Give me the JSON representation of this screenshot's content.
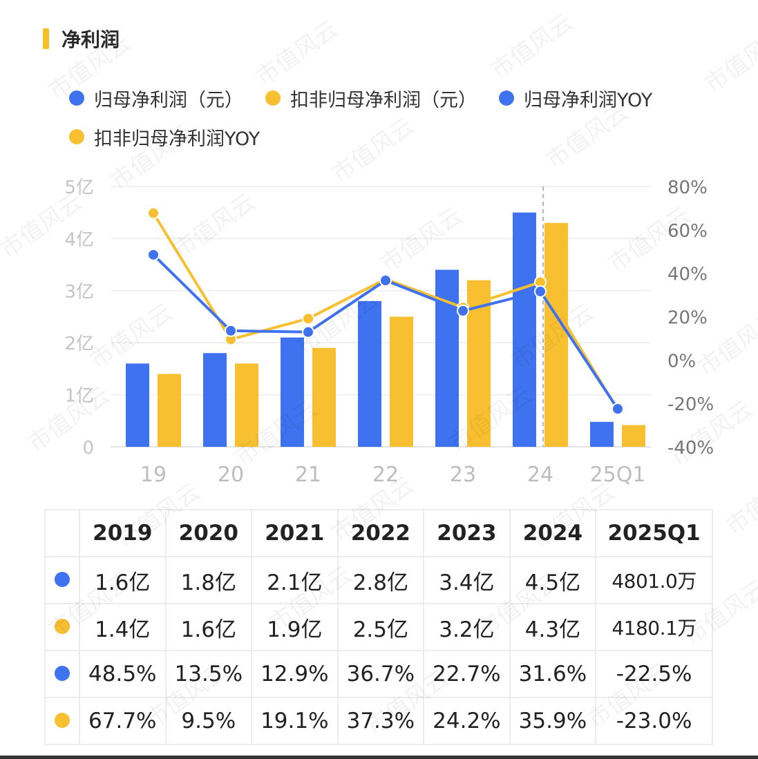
{
  "header": {
    "title": "净利润",
    "accent_color": "#f7bf2a"
  },
  "legend": {
    "items": [
      {
        "label": "归母净利润（元）",
        "color": "#3f72ef"
      },
      {
        "label": "扣非归母净利润（元）",
        "color": "#f8c031"
      },
      {
        "label": "归母净利润YOY",
        "color": "#3f72ef"
      },
      {
        "label": "扣非归母净利润YOY",
        "color": "#f8c031"
      }
    ]
  },
  "chart_data": {
    "type": "bar",
    "categories": [
      "19",
      "20",
      "21",
      "22",
      "23",
      "24",
      "25Q1"
    ],
    "series": [
      {
        "name": "归母净利润（元）",
        "kind": "bar",
        "axis": "left",
        "color": "#3f72ef",
        "values": [
          1.6,
          1.8,
          2.1,
          2.8,
          3.4,
          4.5,
          0.48
        ]
      },
      {
        "name": "扣非归母净利润（元）",
        "kind": "bar",
        "axis": "left",
        "color": "#f8c031",
        "values": [
          1.4,
          1.6,
          1.9,
          2.5,
          3.2,
          4.3,
          0.418
        ]
      },
      {
        "name": "归母净利润YOY",
        "kind": "line",
        "axis": "right",
        "color": "#3f72ef",
        "values": [
          48.5,
          13.5,
          12.9,
          36.7,
          22.7,
          31.6,
          -22.5
        ]
      },
      {
        "name": "扣非归母净利润YOY",
        "kind": "line",
        "axis": "right",
        "color": "#f8c031",
        "values": [
          67.7,
          9.5,
          19.1,
          37.3,
          24.2,
          35.9,
          -23.0
        ]
      }
    ],
    "y_left": {
      "ticks": [
        "0",
        "1亿",
        "2亿",
        "3亿",
        "4亿",
        "5亿"
      ],
      "range": [
        0,
        5
      ]
    },
    "y_right": {
      "ticks": [
        "-40%",
        "-20%",
        "0%",
        "20%",
        "40%",
        "60%",
        "80%"
      ],
      "range": [
        -40,
        80
      ]
    },
    "highlight_category": "24",
    "grid": true
  },
  "table": {
    "headers": [
      "2019",
      "2020",
      "2021",
      "2022",
      "2023",
      "2024",
      "2025Q1"
    ],
    "rows": [
      {
        "color": "#3f72ef",
        "cells": [
          "1.6亿",
          "1.8亿",
          "2.1亿",
          "2.8亿",
          "3.4亿",
          "4.5亿",
          "4801.0万"
        ]
      },
      {
        "color": "#f8c031",
        "cells": [
          "1.4亿",
          "1.6亿",
          "1.9亿",
          "2.5亿",
          "3.2亿",
          "4.3亿",
          "4180.1万"
        ]
      },
      {
        "color": "#3f72ef",
        "cells": [
          "48.5%",
          "13.5%",
          "12.9%",
          "36.7%",
          "22.7%",
          "31.6%",
          "-22.5%"
        ]
      },
      {
        "color": "#f8c031",
        "cells": [
          "67.7%",
          "9.5%",
          "19.1%",
          "37.3%",
          "24.2%",
          "35.9%",
          "-23.0%"
        ]
      }
    ]
  },
  "watermark": "市值风云"
}
